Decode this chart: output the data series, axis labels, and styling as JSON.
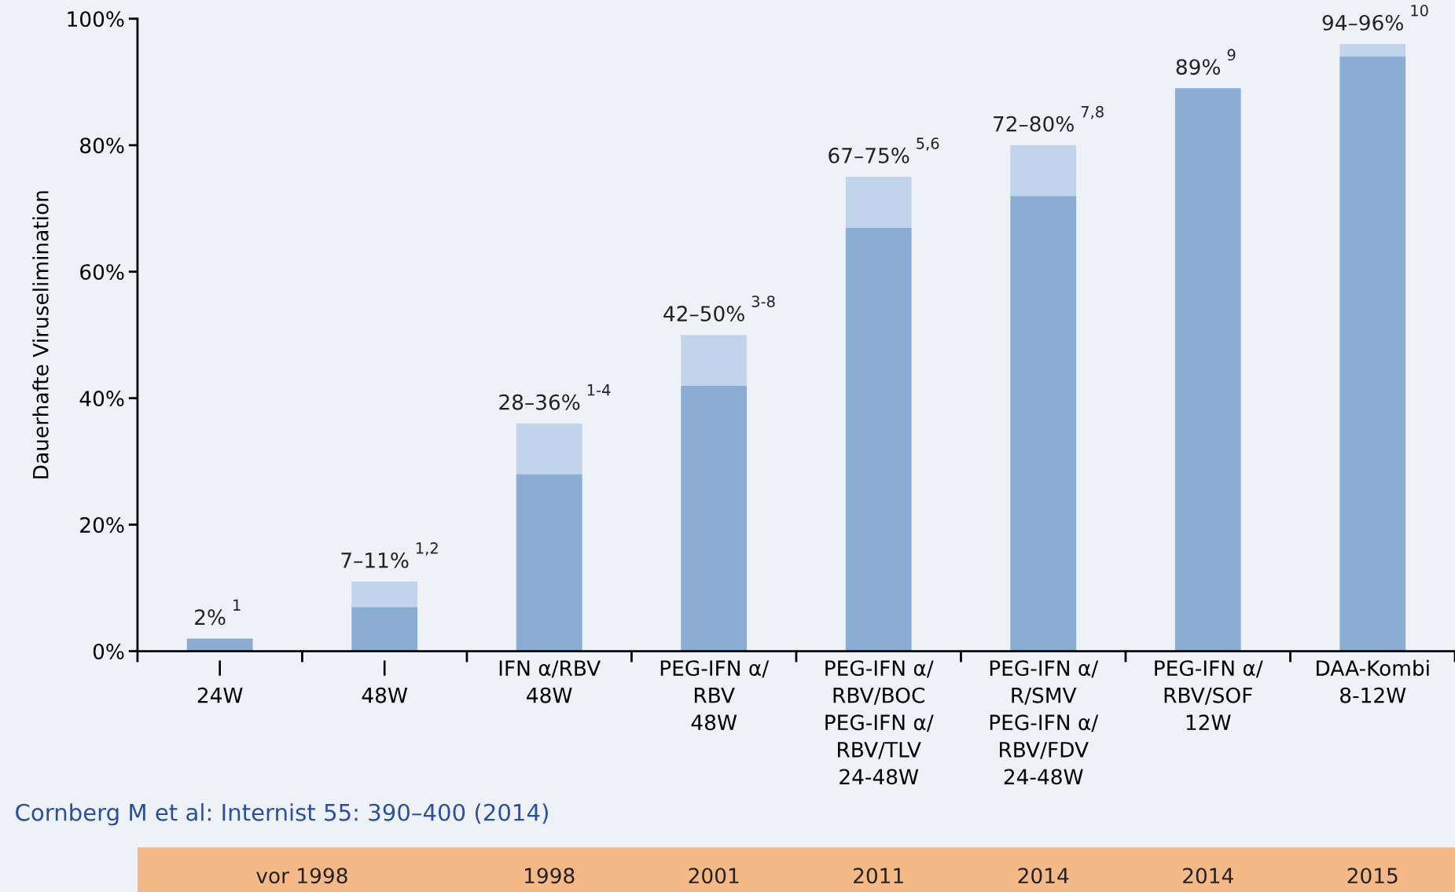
{
  "chart_data": {
    "type": "bar",
    "stacked": true,
    "ylabel": "Dauerhafte Viruselimination",
    "categories": [
      "I\n24W",
      "I\n48W",
      "IFN α/RBV\n48W",
      "PEG-IFN α/\nRBV\n48W",
      "PEG-IFN α/\nRBV/BOC\nPEG-IFN α/\nRBV/TLV\n24-48W",
      "PEG-IFN α/\nR/SMV\nPEG-IFN α/\nRBV/FDV\n24-48W",
      "PEG-IFN α/\nRBV/SOF\n12W",
      "DAA-Kombi\n8-12W"
    ],
    "series": [
      {
        "color": "#8badd4",
        "values": [
          2,
          7,
          28,
          42,
          67,
          72,
          89,
          94
        ]
      },
      {
        "color": "#c2d4eb",
        "values": [
          null,
          4,
          8,
          8,
          8,
          8,
          null,
          2
        ]
      }
    ],
    "totals": [
      "2% $^{1}$",
      "7–11% $^{1,2}$",
      "28–36% $^{1-4}$",
      "42–50% $^{3-8}$",
      "67–75% $^{5,6}$",
      "72–80% $^{7,8}$",
      "89% $^{9}$",
      "94–96% $^{10}$"
    ],
    "ylim": [
      0,
      100
    ],
    "yticks": [
      {
        "value": 0,
        "label": "0%"
      },
      {
        "value": 20,
        "label": "20%"
      },
      {
        "value": 40,
        "label": "40%"
      },
      {
        "value": 60,
        "label": "60%"
      },
      {
        "value": 80,
        "label": "80%"
      },
      {
        "value": 100,
        "label": "100%"
      }
    ],
    "grid": false,
    "legend": false,
    "annotations": [
      "Cornberg M et al: Internist 55: 390–400 (2014)",
      "vor 1998",
      "1998",
      "2001",
      "2011",
      "2014",
      "2014",
      "2015"
    ]
  }
}
